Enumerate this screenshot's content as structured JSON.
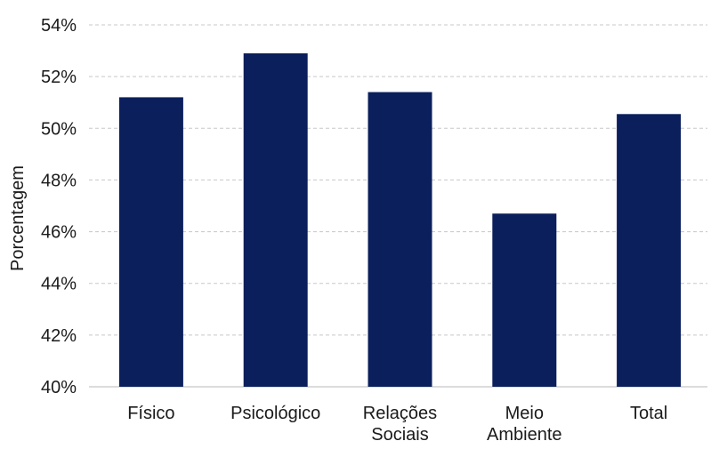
{
  "chart_data": {
    "type": "bar",
    "title": "",
    "xlabel": "",
    "ylabel": "Porcentagem",
    "categories": [
      [
        "Físico"
      ],
      [
        "Psicológico"
      ],
      [
        "Relações",
        "Sociais"
      ],
      [
        "Meio",
        "Ambiente"
      ],
      [
        "Total"
      ]
    ],
    "values": [
      51.2,
      52.9,
      51.4,
      46.7,
      50.55
    ],
    "ylim": [
      40,
      54
    ],
    "yticks": [
      40,
      42,
      44,
      46,
      48,
      50,
      52,
      54
    ],
    "ytick_labels": [
      "40%",
      "42%",
      "44%",
      "46%",
      "48%",
      "50%",
      "52%",
      "54%"
    ],
    "grid": true,
    "bar_color": "#0b1f5c",
    "grid_color": "#c8c8c8"
  }
}
